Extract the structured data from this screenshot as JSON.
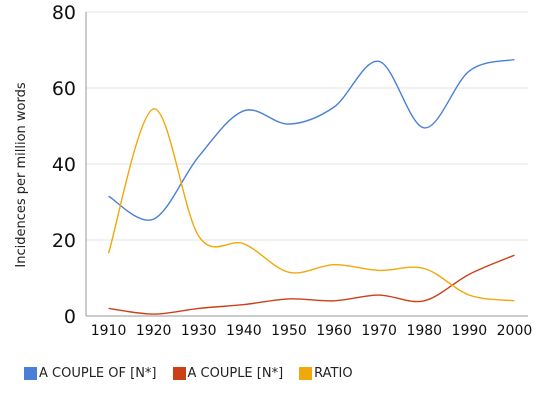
{
  "chart_data": {
    "type": "line",
    "ylabel": "Incidences per million words",
    "xlabel": "",
    "xlim": [
      1905,
      2003
    ],
    "ylim": [
      0,
      80
    ],
    "x_ticks": [
      1910,
      1920,
      1930,
      1940,
      1950,
      1960,
      1970,
      1980,
      1990,
      2000
    ],
    "y_ticks": [
      0,
      20,
      40,
      60,
      80
    ],
    "grid": true,
    "legend_position": "bottom",
    "series": [
      {
        "name": "A COUPLE OF [N*]",
        "color": "#4a7fd8",
        "x": [
          1910,
          1920,
          1930,
          1940,
          1950,
          1960,
          1970,
          1980,
          1990,
          2000
        ],
        "values": [
          31.5,
          25.5,
          42,
          54,
          50.5,
          55,
          67,
          49.5,
          64.5,
          67.5
        ]
      },
      {
        "name": "A COUPLE [N*]",
        "color": "#cc4018",
        "x": [
          1910,
          1920,
          1930,
          1940,
          1950,
          1960,
          1970,
          1980,
          1990,
          2000
        ],
        "values": [
          2,
          0.5,
          2,
          3,
          4.5,
          4,
          5.5,
          4,
          11,
          16
        ]
      },
      {
        "name": "RATIO",
        "color": "#f0a90c",
        "x": [
          1910,
          1920,
          1930,
          1940,
          1950,
          1960,
          1970,
          1980,
          1990,
          2000
        ],
        "values": [
          16.5,
          54.5,
          21,
          19,
          11.5,
          13.5,
          12,
          12.5,
          5.5,
          4
        ]
      }
    ]
  }
}
